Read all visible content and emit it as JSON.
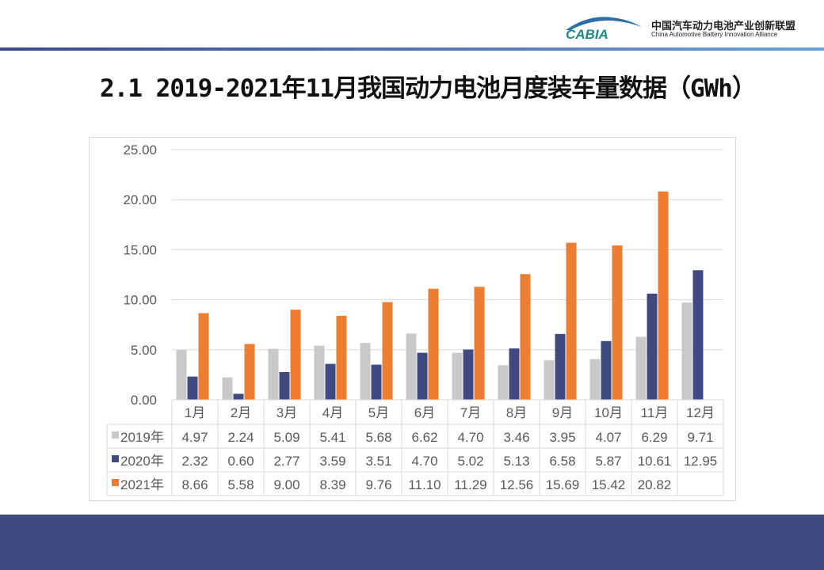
{
  "header": {
    "logo_text": "CABIA",
    "org_cn": "中国汽车动力电池产业创新联盟",
    "org_en": "China Automotive Battery Innovation Alliance"
  },
  "title": "2.1 2019-2021年11月我国动力电池月度装车量数据（GWh）",
  "chart_data": {
    "type": "bar",
    "title": "",
    "categories": [
      "1月",
      "2月",
      "3月",
      "4月",
      "5月",
      "6月",
      "7月",
      "8月",
      "9月",
      "10月",
      "11月",
      "12月"
    ],
    "series": [
      {
        "name": "2019年",
        "color": "#c9c9c9",
        "values": [
          4.97,
          2.24,
          5.09,
          5.41,
          5.68,
          6.62,
          4.7,
          3.46,
          3.95,
          4.07,
          6.29,
          9.71
        ],
        "labels": [
          "4.97",
          "2.24",
          "5.09",
          "5.41",
          "5.68",
          "6.62",
          "4.70",
          "3.46",
          "3.95",
          "4.07",
          "6.29",
          "9.71"
        ]
      },
      {
        "name": "2020年",
        "color": "#3f4a80",
        "values": [
          2.32,
          0.6,
          2.77,
          3.59,
          3.51,
          4.7,
          5.02,
          5.13,
          6.58,
          5.87,
          10.61,
          12.95
        ],
        "labels": [
          "2.32",
          "0.60",
          "2.77",
          "3.59",
          "3.51",
          "4.70",
          "5.02",
          "5.13",
          "6.58",
          "5.87",
          "10.61",
          "12.95"
        ]
      },
      {
        "name": "2021年",
        "color": "#ed7d31",
        "values": [
          8.66,
          5.58,
          9.0,
          8.39,
          9.76,
          11.1,
          11.29,
          12.56,
          15.69,
          15.42,
          20.82,
          null
        ],
        "labels": [
          "8.66",
          "5.58",
          "9.00",
          "8.39",
          "9.76",
          "11.10",
          "11.29",
          "12.56",
          "15.69",
          "15.42",
          "20.82",
          ""
        ]
      }
    ],
    "yticks": [
      "0.00",
      "5.00",
      "10.00",
      "15.00",
      "20.00",
      "25.00"
    ],
    "ylim": [
      0,
      25
    ],
    "grid": true,
    "legend": "data-table"
  }
}
